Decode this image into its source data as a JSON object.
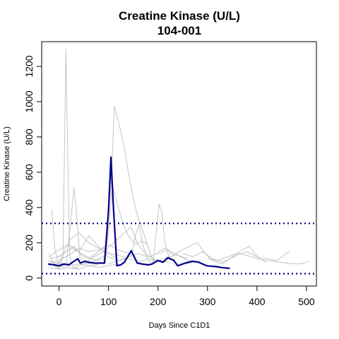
{
  "chart_data": {
    "type": "line",
    "title": "Creatine Kinase (U/L)",
    "subtitle": "104-001",
    "xlabel": "Days Since C1D1",
    "ylabel": "Creatine Kinase (U/L)",
    "xlim": [
      -35,
      520
    ],
    "ylim": [
      -45,
      1340
    ],
    "x_ticks": [
      0,
      100,
      200,
      300,
      400,
      500
    ],
    "y_ticks": [
      0,
      200,
      400,
      600,
      800,
      1000,
      1200
    ],
    "reference_lines": [
      {
        "y": 310,
        "color": "#000080",
        "style": "dotted"
      },
      {
        "y": 25,
        "color": "#000080",
        "style": "dotted"
      }
    ],
    "highlight_color": "#00008B",
    "background_color": "#BEBEBE",
    "series": [
      {
        "role": "highlight",
        "points": [
          [
            -22,
            80
          ],
          [
            -10,
            75
          ],
          [
            0,
            70
          ],
          [
            10,
            80
          ],
          [
            20,
            75
          ],
          [
            30,
            95
          ],
          [
            38,
            110
          ],
          [
            43,
            85
          ],
          [
            52,
            95
          ],
          [
            60,
            90
          ],
          [
            70,
            85
          ],
          [
            80,
            85
          ],
          [
            92,
            85
          ],
          [
            100,
            380
          ],
          [
            105,
            685
          ],
          [
            110,
            400
          ],
          [
            117,
            70
          ],
          [
            125,
            75
          ],
          [
            132,
            90
          ],
          [
            146,
            155
          ],
          [
            158,
            85
          ],
          [
            168,
            80
          ],
          [
            180,
            75
          ],
          [
            188,
            80
          ],
          [
            200,
            100
          ],
          [
            210,
            90
          ],
          [
            220,
            115
          ],
          [
            232,
            100
          ],
          [
            240,
            70
          ],
          [
            255,
            85
          ],
          [
            270,
            95
          ],
          [
            282,
            90
          ],
          [
            298,
            70
          ],
          [
            305,
            68
          ],
          [
            318,
            65
          ],
          [
            328,
            60
          ],
          [
            345,
            55
          ]
        ]
      },
      {
        "role": "background",
        "points": [
          [
            -8,
            60
          ],
          [
            0,
            55
          ],
          [
            8,
            120
          ],
          [
            14,
            1295
          ],
          [
            18,
            650
          ],
          [
            22,
            120
          ],
          [
            28,
            60
          ],
          [
            40,
            55
          ]
        ]
      },
      {
        "role": "background",
        "points": [
          [
            -20,
            140
          ],
          [
            -10,
            70
          ],
          [
            0,
            60
          ],
          [
            15,
            80
          ],
          [
            25,
            360
          ],
          [
            30,
            510
          ],
          [
            35,
            380
          ],
          [
            42,
            120
          ],
          [
            55,
            80
          ],
          [
            70,
            90
          ]
        ]
      },
      {
        "role": "background",
        "points": [
          [
            -15,
            390
          ],
          [
            -8,
            160
          ],
          [
            0,
            70
          ],
          [
            10,
            60
          ],
          [
            20,
            80
          ]
        ]
      },
      {
        "role": "background",
        "points": [
          [
            60,
            80
          ],
          [
            80,
            110
          ],
          [
            95,
            130
          ],
          [
            105,
            540
          ],
          [
            112,
            970
          ],
          [
            120,
            890
          ],
          [
            132,
            740
          ],
          [
            140,
            600
          ],
          [
            150,
            450
          ],
          [
            160,
            340
          ],
          [
            168,
            280
          ],
          [
            175,
            220
          ],
          [
            182,
            160
          ],
          [
            188,
            110
          ],
          [
            195,
            90
          ]
        ]
      },
      {
        "role": "background",
        "points": [
          [
            90,
            100
          ],
          [
            100,
            250
          ],
          [
            108,
            520
          ],
          [
            118,
            420
          ],
          [
            128,
            320
          ],
          [
            140,
            240
          ],
          [
            155,
            190
          ],
          [
            168,
            210
          ],
          [
            178,
            190
          ]
        ]
      },
      {
        "role": "background",
        "points": [
          [
            145,
            120
          ],
          [
            155,
            250
          ],
          [
            162,
            300
          ],
          [
            170,
            180
          ],
          [
            180,
            100
          ],
          [
            190,
            90
          ],
          [
            198,
            300
          ],
          [
            202,
            420
          ],
          [
            208,
            370
          ],
          [
            214,
            200
          ],
          [
            222,
            120
          ],
          [
            232,
            100
          ]
        ]
      },
      {
        "role": "background",
        "points": [
          [
            160,
            90
          ],
          [
            180,
            110
          ],
          [
            200,
            95
          ],
          [
            220,
            120
          ],
          [
            240,
            130
          ],
          [
            260,
            100
          ],
          [
            280,
            90
          ]
        ]
      },
      {
        "role": "background",
        "points": [
          [
            -20,
            120
          ],
          [
            0,
            160
          ],
          [
            20,
            190
          ],
          [
            40,
            150
          ],
          [
            60,
            240
          ],
          [
            80,
            180
          ],
          [
            100,
            120
          ],
          [
            120,
            100
          ],
          [
            140,
            110
          ]
        ]
      },
      {
        "role": "background",
        "points": [
          [
            -22,
            100
          ],
          [
            0,
            80
          ],
          [
            20,
            210
          ],
          [
            40,
            260
          ],
          [
            60,
            200
          ],
          [
            80,
            170
          ],
          [
            100,
            140
          ],
          [
            120,
            130
          ],
          [
            140,
            110
          ],
          [
            160,
            100
          ]
        ]
      },
      {
        "role": "background",
        "points": [
          [
            30,
            60
          ],
          [
            50,
            80
          ],
          [
            70,
            120
          ],
          [
            90,
            150
          ],
          [
            110,
            200
          ],
          [
            130,
            250
          ],
          [
            145,
            290
          ],
          [
            158,
            200
          ],
          [
            170,
            150
          ],
          [
            185,
            120
          ],
          [
            200,
            100
          ],
          [
            220,
            90
          ]
        ]
      },
      {
        "role": "background",
        "points": [
          [
            -18,
            90
          ],
          [
            0,
            100
          ],
          [
            20,
            130
          ],
          [
            40,
            170
          ],
          [
            60,
            150
          ],
          [
            80,
            160
          ],
          [
            100,
            190
          ],
          [
            120,
            160
          ],
          [
            140,
            140
          ]
        ]
      },
      {
        "role": "background",
        "points": [
          [
            200,
            150
          ],
          [
            215,
            170
          ],
          [
            230,
            130
          ],
          [
            250,
            160
          ],
          [
            270,
            190
          ],
          [
            280,
            200
          ],
          [
            295,
            140
          ],
          [
            310,
            100
          ],
          [
            330,
            80
          ],
          [
            350,
            120
          ],
          [
            370,
            160
          ],
          [
            385,
            180
          ],
          [
            395,
            140
          ],
          [
            405,
            110
          ],
          [
            420,
            90
          ]
        ]
      },
      {
        "role": "background",
        "points": [
          [
            250,
            140
          ],
          [
            270,
            120
          ],
          [
            290,
            150
          ],
          [
            310,
            110
          ],
          [
            330,
            90
          ],
          [
            360,
            130
          ],
          [
            380,
            150
          ],
          [
            400,
            120
          ],
          [
            420,
            110
          ],
          [
            440,
            100
          ],
          [
            460,
            140
          ],
          [
            465,
            150
          ]
        ]
      },
      {
        "role": "background",
        "points": [
          [
            300,
            110
          ],
          [
            320,
            100
          ],
          [
            340,
            120
          ],
          [
            360,
            140
          ],
          [
            380,
            130
          ],
          [
            400,
            110
          ],
          [
            420,
            100
          ],
          [
            445,
            90
          ],
          [
            460,
            85
          ],
          [
            480,
            80
          ],
          [
            495,
            85
          ],
          [
            505,
            95
          ]
        ]
      },
      {
        "role": "background",
        "points": [
          [
            -20,
            70
          ],
          [
            0,
            90
          ],
          [
            20,
            70
          ],
          [
            40,
            80
          ],
          [
            60,
            70
          ],
          [
            80,
            75
          ]
        ]
      },
      {
        "role": "background",
        "points": [
          [
            -15,
            110
          ],
          [
            5,
            130
          ],
          [
            25,
            170
          ],
          [
            45,
            140
          ],
          [
            65,
            110
          ],
          [
            85,
            100
          ]
        ]
      },
      {
        "role": "background",
        "points": [
          [
            100,
            80
          ],
          [
            120,
            100
          ],
          [
            140,
            120
          ],
          [
            160,
            140
          ],
          [
            180,
            120
          ],
          [
            200,
            140
          ],
          [
            220,
            160
          ],
          [
            240,
            130
          ],
          [
            260,
            110
          ]
        ]
      },
      {
        "role": "background",
        "points": [
          [
            -22,
            60
          ],
          [
            0,
            50
          ],
          [
            20,
            60
          ],
          [
            40,
            50
          ],
          [
            60,
            70
          ],
          [
            80,
            60
          ],
          [
            100,
            70
          ],
          [
            120,
            80
          ]
        ]
      },
      {
        "role": "background",
        "points": [
          [
            0,
            120
          ],
          [
            15,
            150
          ],
          [
            30,
            180
          ],
          [
            45,
            130
          ],
          [
            60,
            110
          ],
          [
            75,
            140
          ],
          [
            90,
            170
          ],
          [
            105,
            130
          ],
          [
            120,
            110
          ]
        ]
      }
    ]
  }
}
